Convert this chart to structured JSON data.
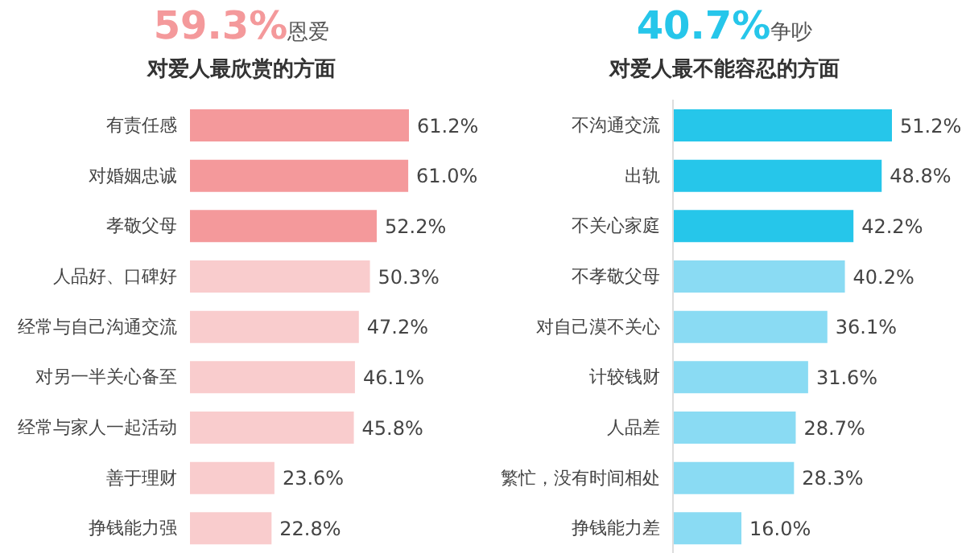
{
  "chart_data": [
    {
      "type": "bar",
      "orientation": "horizontal",
      "title": "59.3%恩爱",
      "subtitle": "对爱人最欣赏的方面",
      "categories": [
        "有责任感",
        "对婚姻忠诚",
        "孝敬父母",
        "人品好、口碑好",
        "经常与自己沟通交流",
        "对另一半关心备至",
        "经常与家人一起活动",
        "善于理财",
        "挣钱能力强"
      ],
      "values": [
        61.2,
        61.0,
        52.2,
        50.3,
        47.2,
        46.1,
        45.8,
        23.6,
        22.8
      ],
      "value_labels": [
        "61.2%",
        "61.0%",
        "52.2%",
        "50.3%",
        "47.2%",
        "46.1%",
        "45.8%",
        "23.6%",
        "22.8%"
      ],
      "colors": [
        "#f4999b",
        "#f4999b",
        "#f4999b",
        "#f9cccd",
        "#f9cccd",
        "#f9cccd",
        "#f9cccd",
        "#f9cccd",
        "#f9cccd"
      ],
      "legend": false,
      "grid": false
    },
    {
      "type": "bar",
      "orientation": "horizontal",
      "title": "40.7%争吵",
      "subtitle": "对爱人最不能容忍的方面",
      "categories": [
        "不沟通交流",
        "出轨",
        "不关心家庭",
        "不孝敬父母",
        "对自己漠不关心",
        "计较钱财",
        "人品差",
        "繁忙，没有时间相处",
        "挣钱能力差"
      ],
      "values": [
        51.2,
        48.8,
        42.2,
        40.2,
        36.1,
        31.6,
        28.7,
        28.3,
        16.0
      ],
      "value_labels": [
        "51.2%",
        "48.8%",
        "42.2%",
        "40.2%",
        "36.1%",
        "31.6%",
        "28.7%",
        "28.3%",
        "16.0%"
      ],
      "colors": [
        "#26c6ea",
        "#26c6ea",
        "#26c6ea",
        "#8adbf3",
        "#8adbf3",
        "#8adbf3",
        "#8adbf3",
        "#8adbf3",
        "#8adbf3"
      ],
      "legend": false,
      "grid": false
    }
  ]
}
